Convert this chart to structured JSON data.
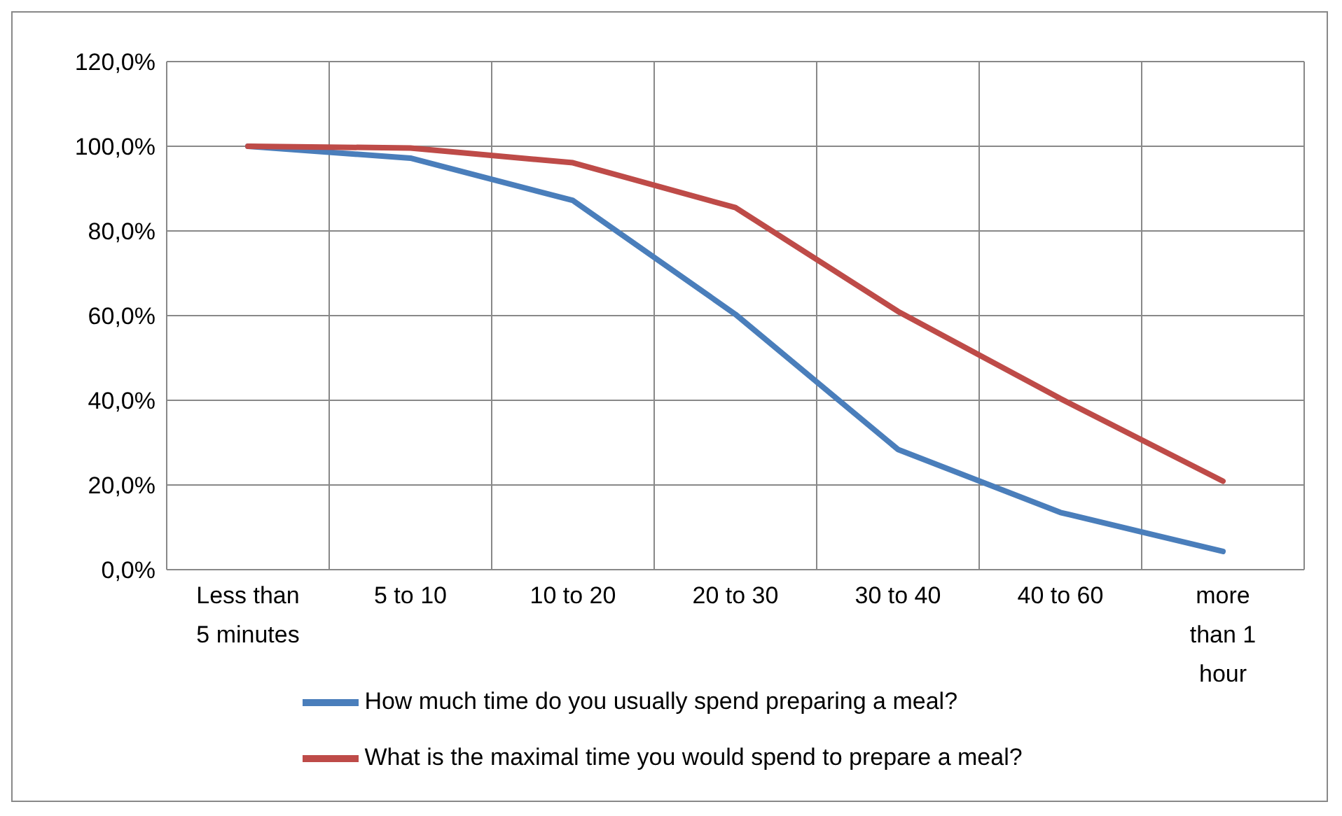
{
  "chart_data": {
    "type": "line",
    "categories": [
      "Less than 5 minutes",
      "5 to 10",
      "10 to 20",
      "20 to 30",
      "30 to 40",
      "40 to 60",
      "more than 1 hour"
    ],
    "series": [
      {
        "name": "How much time do you usually spend preparing a meal?",
        "color": "#4a7ebb",
        "values": [
          100,
          97.2,
          87.2,
          60.3,
          28.4,
          13.5,
          4.3
        ]
      },
      {
        "name": "What is the maximal time you would spend to prepare a meal?",
        "color": "#be4b48",
        "values": [
          100,
          99.6,
          96.1,
          85.5,
          61.0,
          40.4,
          20.9
        ]
      }
    ],
    "ylim": [
      0,
      120
    ],
    "yticks": [
      {
        "value": 0,
        "label": "0,0%"
      },
      {
        "value": 20,
        "label": "20,0%"
      },
      {
        "value": 40,
        "label": "40,0%"
      },
      {
        "value": 60,
        "label": "60,0%"
      },
      {
        "value": 80,
        "label": "80,0%"
      },
      {
        "value": 100,
        "label": "100,0%"
      },
      {
        "value": 120,
        "label": "120,0%"
      }
    ],
    "grid": true,
    "legend": "bottom",
    "marker": "none",
    "line_style": "solid"
  }
}
